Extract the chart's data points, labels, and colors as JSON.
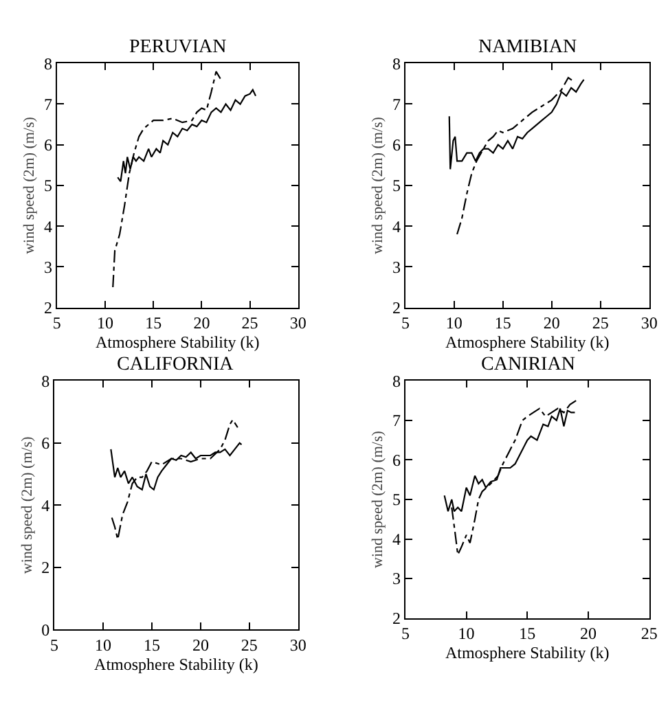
{
  "chart_data": [
    {
      "type": "line",
      "title": "PERUVIAN",
      "xlabel": "Atmosphere Stability (k)",
      "ylabel": "wind speed (2m) (m/s)",
      "xlim": [
        5,
        30
      ],
      "xticks": [
        5,
        10,
        15,
        20,
        25,
        30
      ],
      "ylim": [
        2,
        8
      ],
      "yticks": [
        2,
        3,
        4,
        5,
        6,
        7,
        8
      ],
      "marker": "none",
      "series": [
        {
          "color": "#000000",
          "line_style": "solid",
          "x": [
            11.3,
            11.6,
            11.9,
            12.1,
            12.3,
            12.6,
            12.9,
            13.2,
            13.5,
            14,
            14.5,
            14.8,
            15.3,
            15.7,
            16,
            16.5,
            17,
            17.5,
            18,
            18.5,
            19,
            19.5,
            20,
            20.5,
            21,
            21.5,
            22,
            22.5,
            23,
            23.5,
            24,
            24.5,
            25,
            25.3,
            25.6
          ],
          "values": [
            5.2,
            5.1,
            5.6,
            5.3,
            5.7,
            5.4,
            5.7,
            5.6,
            5.7,
            5.6,
            5.9,
            5.7,
            5.9,
            5.8,
            6.1,
            6.0,
            6.3,
            6.2,
            6.4,
            6.35,
            6.5,
            6.45,
            6.6,
            6.55,
            6.8,
            6.9,
            6.8,
            7.0,
            6.85,
            7.1,
            7.0,
            7.2,
            7.25,
            7.35,
            7.2
          ]
        },
        {
          "color": "#000000",
          "line_style": "dashdot",
          "x": [
            10.8,
            11.0,
            11.5,
            12.0,
            12.5,
            13,
            13.5,
            14,
            14.5,
            15,
            16,
            17,
            18,
            19,
            19.5,
            20,
            20.5,
            21,
            21.5,
            22
          ],
          "values": [
            2.5,
            3.4,
            3.8,
            4.5,
            5.3,
            5.8,
            6.2,
            6.4,
            6.5,
            6.6,
            6.6,
            6.65,
            6.55,
            6.6,
            6.8,
            6.9,
            6.85,
            7.3,
            7.8,
            7.6
          ]
        }
      ]
    },
    {
      "type": "line",
      "title": "NAMIBIAN",
      "xlabel": "Atmosphere Stability (k)",
      "ylabel": "wind speed (2m) (m/s)",
      "xlim": [
        5,
        30
      ],
      "xticks": [
        5,
        10,
        15,
        20,
        25,
        30
      ],
      "ylim": [
        2,
        8
      ],
      "yticks": [
        2,
        3,
        4,
        5,
        6,
        7,
        8
      ],
      "marker": "none",
      "series": [
        {
          "color": "#000000",
          "line_style": "solid",
          "x": [
            9.5,
            9.6,
            9.9,
            10.1,
            10.3,
            10.8,
            11.3,
            11.8,
            12.2,
            12.6,
            13,
            13.5,
            14,
            14.5,
            15,
            15.5,
            16,
            16.5,
            17,
            17.5,
            18,
            18.5,
            19,
            19.5,
            20,
            20.5,
            21,
            21.5,
            22,
            22.5,
            23,
            23.3
          ],
          "values": [
            6.7,
            5.4,
            6.1,
            6.2,
            5.6,
            5.6,
            5.8,
            5.8,
            5.6,
            5.8,
            5.9,
            5.9,
            5.8,
            6.0,
            5.9,
            6.1,
            5.9,
            6.2,
            6.15,
            6.3,
            6.4,
            6.5,
            6.6,
            6.7,
            6.8,
            7.0,
            7.3,
            7.2,
            7.4,
            7.3,
            7.5,
            7.6
          ]
        },
        {
          "color": "#000000",
          "line_style": "dashdot",
          "x": [
            10.3,
            10.8,
            11.3,
            11.8,
            12.3,
            13,
            13.5,
            14,
            14.5,
            15,
            16,
            17,
            18,
            19,
            20,
            21,
            21.7,
            22.3
          ],
          "values": [
            3.8,
            4.2,
            4.8,
            5.3,
            5.6,
            5.9,
            6.1,
            6.2,
            6.35,
            6.3,
            6.4,
            6.6,
            6.8,
            6.95,
            7.1,
            7.35,
            7.65,
            7.55
          ]
        }
      ]
    },
    {
      "type": "line",
      "title": "CALIFORNIA",
      "xlabel": "Atmosphere Stability (k)",
      "ylabel": "wind speed (2m) (m/s)",
      "xlim": [
        5,
        30
      ],
      "xticks": [
        5,
        10,
        15,
        20,
        25,
        30
      ],
      "ylim": [
        0,
        8
      ],
      "yticks": [
        0,
        2,
        4,
        6,
        8
      ],
      "marker": "none",
      "series": [
        {
          "color": "#000000",
          "line_style": "solid",
          "x": [
            10.8,
            11.2,
            11.5,
            11.8,
            12.2,
            12.6,
            13,
            13.5,
            14,
            14.4,
            14.8,
            15.2,
            15.6,
            16,
            16.5,
            17,
            17.5,
            18,
            18.5,
            19,
            19.5,
            20,
            21,
            21.5,
            22,
            22.5,
            23,
            23.5,
            24,
            24.2
          ],
          "values": [
            5.8,
            4.9,
            5.2,
            4.9,
            5.1,
            4.7,
            4.9,
            4.6,
            4.5,
            5.0,
            4.6,
            4.5,
            4.9,
            5.1,
            5.3,
            5.5,
            5.45,
            5.6,
            5.55,
            5.7,
            5.5,
            5.6,
            5.6,
            5.7,
            5.7,
            5.8,
            5.6,
            5.8,
            6.0,
            5.95
          ]
        },
        {
          "color": "#000000",
          "line_style": "dashdot",
          "x": [
            10.9,
            11.2,
            11.5,
            12,
            12.5,
            13,
            13.5,
            14,
            14.5,
            15,
            15.5,
            16,
            17,
            18,
            19,
            20,
            21,
            22,
            22.5,
            23,
            23.3,
            23.8
          ],
          "values": [
            3.6,
            3.3,
            2.9,
            3.7,
            4.1,
            4.7,
            4.9,
            4.9,
            5.1,
            5.4,
            5.35,
            5.3,
            5.5,
            5.5,
            5.4,
            5.5,
            5.5,
            5.8,
            6.1,
            6.6,
            6.75,
            6.5
          ]
        }
      ]
    },
    {
      "type": "line",
      "title": "CANIRIAN",
      "xlabel": "Atmosphere Stability (k)",
      "ylabel": "wind speed (2m) (m/s)",
      "xlim": [
        5,
        25
      ],
      "xticks": [
        5,
        10,
        15,
        20,
        25
      ],
      "ylim": [
        2,
        8
      ],
      "yticks": [
        2,
        3,
        4,
        5,
        6,
        7,
        8
      ],
      "marker": "none",
      "series": [
        {
          "color": "#000000",
          "line_style": "solid",
          "x": [
            8.2,
            8.5,
            8.8,
            9.0,
            9.3,
            9.6,
            10,
            10.3,
            10.7,
            11,
            11.3,
            11.6,
            12,
            12.5,
            12.8,
            13.2,
            13.6,
            14,
            14.5,
            15,
            15.3,
            15.8,
            16.3,
            16.7,
            17,
            17.4,
            17.7,
            18,
            18.3,
            18.6,
            18.9
          ],
          "values": [
            5.1,
            4.7,
            5.0,
            4.7,
            4.8,
            4.7,
            5.3,
            5.1,
            5.6,
            5.4,
            5.5,
            5.3,
            5.45,
            5.5,
            5.8,
            5.8,
            5.8,
            5.9,
            6.2,
            6.5,
            6.6,
            6.5,
            6.9,
            6.85,
            7.1,
            7.0,
            7.3,
            6.85,
            7.25,
            7.2,
            7.2
          ]
        },
        {
          "color": "#000000",
          "line_style": "dashdot",
          "x": [
            8.8,
            9.1,
            9.3,
            9.6,
            10,
            10.3,
            10.7,
            11,
            11.3,
            12,
            12.6,
            13,
            13.5,
            14,
            14.6,
            15,
            15.5,
            16,
            16.5,
            17,
            17.5,
            18,
            18.5,
            19
          ],
          "values": [
            4.8,
            4.1,
            3.6,
            3.8,
            4.1,
            3.9,
            4.5,
            5.0,
            5.2,
            5.4,
            5.6,
            5.9,
            6.2,
            6.5,
            7.0,
            7.1,
            7.2,
            7.3,
            7.1,
            7.2,
            7.3,
            7.2,
            7.4,
            7.5
          ]
        }
      ]
    }
  ]
}
